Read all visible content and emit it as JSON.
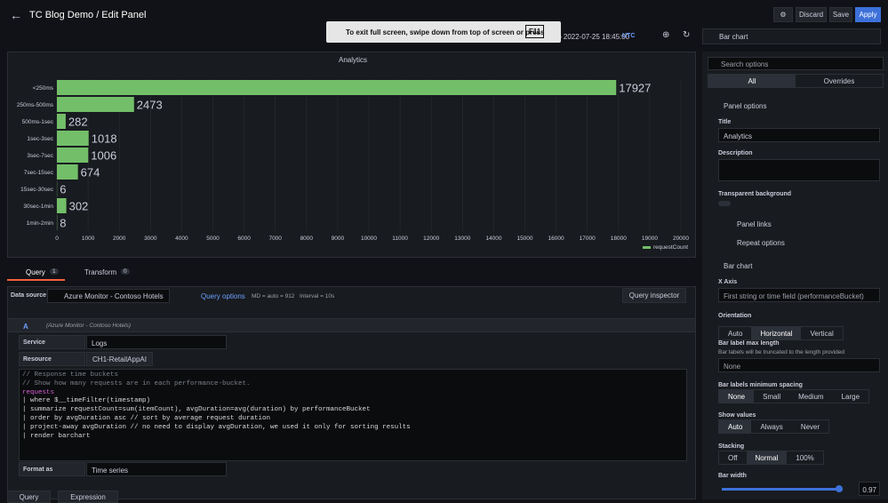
{
  "header": {
    "title": "TC Blog Demo / Edit Panel",
    "buttons": [
      "Discard",
      "Save",
      "Apply"
    ]
  },
  "toast": {
    "text": "To exit full screen, swipe down from top of screen or press",
    "key": "F11"
  },
  "time": {
    "range": "to 2022-07-25 18:45:00",
    "zone": "UTC"
  },
  "visualization": "Bar chart",
  "chart": {
    "type": "bar",
    "title": "Analytics",
    "orientation": "horizontal",
    "color": "#73bf69",
    "categories": [
      "<250ms",
      "250ms-500ms",
      "500ms-1sec",
      "1sec-3sec",
      "3sec-7sec",
      "7sec-15sec",
      "15sec-30sec",
      "30sec-1min",
      "1min-2min"
    ],
    "series": [
      {
        "name": "requestCount",
        "color": "#73bf69",
        "values": [
          17927,
          2473,
          282,
          1018,
          1006,
          674,
          6,
          302,
          8
        ]
      }
    ],
    "xlim": [
      0,
      20000
    ],
    "xticks": [
      0,
      1000,
      2000,
      3000,
      4000,
      5000,
      6000,
      7000,
      8000,
      9000,
      10000,
      11000,
      12000,
      13000,
      14000,
      15000,
      16000,
      17000,
      18000,
      19000,
      20000
    ],
    "grid": true,
    "legend": "bottom-right"
  },
  "tabs": [
    {
      "label": "Query",
      "count": 1
    },
    {
      "label": "Transform",
      "count": 0
    }
  ],
  "querybar": {
    "label": "Data source",
    "source": "Azure Monitor - Contoso Hotels",
    "options": "Query options",
    "md": "MD = auto = 912",
    "interval": "Interval = 10s",
    "inspector": "Query inspector"
  },
  "query": {
    "ref": "A",
    "source": "(Azure Monitor - Contoso Hotels)",
    "service_label": "Service",
    "service": "Logs",
    "resource_label": "Resource",
    "resource": "CH1-RetailAppAI",
    "code": [
      "// Response time buckets",
      "// Show how many requests are in each performance-bucket.",
      "requests",
      "| where $__timeFilter(timestamp)",
      "| summarize requestCount=sum(itemCount), avgDuration=avg(duration) by performanceBucket",
      "| order by avgDuration asc // sort by average request duration",
      "| project-away avgDuration // no need to display avgDuration, we used it only for sorting results",
      "| render barchart"
    ],
    "format_label": "Format as",
    "format": "Time series"
  },
  "add_buttons": [
    "Query",
    "Expression"
  ],
  "options": {
    "search": "Search options",
    "tabs": [
      "All",
      "Overrides"
    ],
    "panel_options": "Panel options",
    "title_label": "Title",
    "title_value": "Analytics",
    "description": "Description",
    "transparent": "Transparent background",
    "panel_links": "Panel links",
    "repeat": "Repeat options",
    "bar_chart": "Bar chart",
    "xaxis_label": "X Axis",
    "xaxis_value": "First string or time field (performanceBucket)",
    "orientation": {
      "label": "Orientation",
      "choices": [
        "Auto",
        "Horizontal",
        "Vertical"
      ],
      "selected": 1
    },
    "max_length": {
      "label": "Bar label max length",
      "hint": "Bar labels will be truncated to the length provided",
      "placeholder": "None"
    },
    "spacing": {
      "label": "Bar labels minimum spacing",
      "choices": [
        "None",
        "Small",
        "Medium",
        "Large"
      ],
      "selected": 0
    },
    "show_values": {
      "label": "Show values",
      "choices": [
        "Auto",
        "Always",
        "Never"
      ],
      "selected": 0
    },
    "stacking": {
      "label": "Stacking",
      "choices": [
        "Off",
        "Normal",
        "100%"
      ],
      "selected": 1
    },
    "bar_width": {
      "label": "Bar width",
      "value": 0.97,
      "min": 0,
      "max": 1
    }
  }
}
